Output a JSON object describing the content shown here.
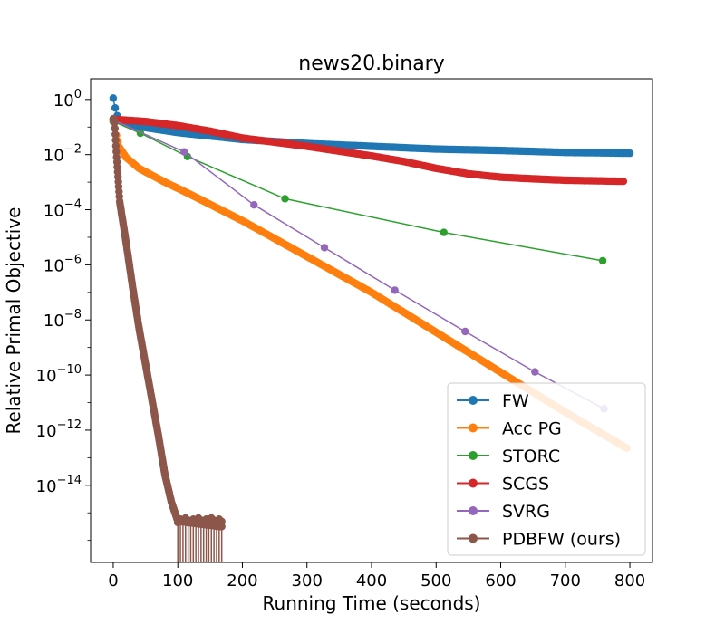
{
  "chart_data": {
    "type": "line",
    "title": "news20.binary",
    "xlabel": "Running Time (seconds)",
    "ylabel": "Relative Primal Objective",
    "xscale": "linear",
    "yscale": "log",
    "xlim": [
      -35,
      835
    ],
    "ylim_log10": [
      -16.8,
      0.75
    ],
    "x_ticks": [
      {
        "value": 0,
        "label": "0"
      },
      {
        "value": 100,
        "label": "100"
      },
      {
        "value": 200,
        "label": "200"
      },
      {
        "value": 300,
        "label": "300"
      },
      {
        "value": 400,
        "label": "400"
      },
      {
        "value": 500,
        "label": "500"
      },
      {
        "value": 600,
        "label": "600"
      },
      {
        "value": 700,
        "label": "700"
      },
      {
        "value": 800,
        "label": "800"
      }
    ],
    "y_ticks": [
      {
        "exp": 0,
        "base": "10",
        "sup": "0"
      },
      {
        "exp": -2,
        "base": "10",
        "sup": "−2"
      },
      {
        "exp": -4,
        "base": "10",
        "sup": "−4"
      },
      {
        "exp": -6,
        "base": "10",
        "sup": "−6"
      },
      {
        "exp": -8,
        "base": "10",
        "sup": "−8"
      },
      {
        "exp": -10,
        "base": "10",
        "sup": "−10"
      },
      {
        "exp": -12,
        "base": "10",
        "sup": "−12"
      },
      {
        "exp": -14,
        "base": "10",
        "sup": "−14"
      }
    ],
    "grid": false,
    "legend_position": "bottom-right",
    "series": [
      {
        "name": "FW",
        "color": "#1f77b4",
        "dense": true,
        "x_range": [
          0,
          800
        ],
        "n_points": 260,
        "knots_log10": [
          [
            0,
            0.05
          ],
          [
            3,
            -0.3
          ],
          [
            8,
            -0.75
          ],
          [
            30,
            -0.95
          ],
          [
            100,
            -1.2
          ],
          [
            200,
            -1.45
          ],
          [
            300,
            -1.6
          ],
          [
            400,
            -1.7
          ],
          [
            500,
            -1.8
          ],
          [
            600,
            -1.85
          ],
          [
            700,
            -1.92
          ],
          [
            800,
            -1.95
          ]
        ],
        "x": [
          0,
          800
        ],
        "y": [
          1.1,
          0.011
        ]
      },
      {
        "name": "Acc PG",
        "color": "#ff7f0e",
        "dense": true,
        "x_range": [
          0,
          795
        ],
        "n_points": 320,
        "knots_log10": [
          [
            0,
            -0.8
          ],
          [
            5,
            -1.3
          ],
          [
            10,
            -1.75
          ],
          [
            20,
            -2.1
          ],
          [
            40,
            -2.5
          ],
          [
            80,
            -3.0
          ],
          [
            120,
            -3.45
          ],
          [
            200,
            -4.4
          ],
          [
            300,
            -5.7
          ],
          [
            400,
            -7.0
          ],
          [
            500,
            -8.45
          ],
          [
            600,
            -9.9
          ],
          [
            700,
            -11.35
          ],
          [
            795,
            -12.65
          ]
        ],
        "x": [
          0,
          795
        ],
        "y": [
          0.16,
          2.2e-13
        ]
      },
      {
        "name": "STORC",
        "color": "#2ca02c",
        "dense": false,
        "x": [
          0,
          42,
          115,
          266,
          512,
          758
        ],
        "y": [
          0.16,
          0.06,
          0.0085,
          0.00025,
          1.5e-05,
          1.4e-06
        ]
      },
      {
        "name": "SCGS",
        "color": "#d62728",
        "dense": true,
        "x_range": [
          0,
          790
        ],
        "n_points": 260,
        "knots_log10": [
          [
            0,
            -0.72
          ],
          [
            50,
            -0.8
          ],
          [
            100,
            -0.95
          ],
          [
            150,
            -1.15
          ],
          [
            200,
            -1.4
          ],
          [
            250,
            -1.55
          ],
          [
            300,
            -1.7
          ],
          [
            400,
            -2.05
          ],
          [
            450,
            -2.25
          ],
          [
            500,
            -2.5
          ],
          [
            550,
            -2.7
          ],
          [
            600,
            -2.82
          ],
          [
            650,
            -2.88
          ],
          [
            700,
            -2.93
          ],
          [
            790,
            -2.97
          ]
        ],
        "x": [
          0,
          790
        ],
        "y": [
          0.19,
          0.00107
        ]
      },
      {
        "name": "SVRG",
        "color": "#9467bd",
        "dense": false,
        "x": [
          0,
          110,
          218,
          327,
          436,
          545,
          653,
          760
        ],
        "y": [
          0.18,
          0.0125,
          0.00015,
          4.2e-06,
          1.2e-07,
          3.8e-09,
          1.3e-10,
          6e-12
        ]
      },
      {
        "name": "PDBFW (ours)",
        "color": "#8c564b",
        "dense": true,
        "x_range": [
          0,
          168
        ],
        "n_points": 320,
        "knots_log10": [
          [
            0,
            -0.7
          ],
          [
            2,
            -0.8
          ],
          [
            5,
            -2.0
          ],
          [
            10,
            -3.7
          ],
          [
            20,
            -5.2
          ],
          [
            30,
            -6.8
          ],
          [
            40,
            -8.3
          ],
          [
            50,
            -9.6
          ],
          [
            60,
            -10.9
          ],
          [
            70,
            -12.2
          ],
          [
            80,
            -13.6
          ],
          [
            90,
            -14.6
          ],
          [
            100,
            -15.3
          ],
          [
            168,
            -15.5
          ]
        ],
        "x": [
          0,
          168
        ],
        "y": [
          0.2,
          3e-16
        ]
      }
    ]
  }
}
